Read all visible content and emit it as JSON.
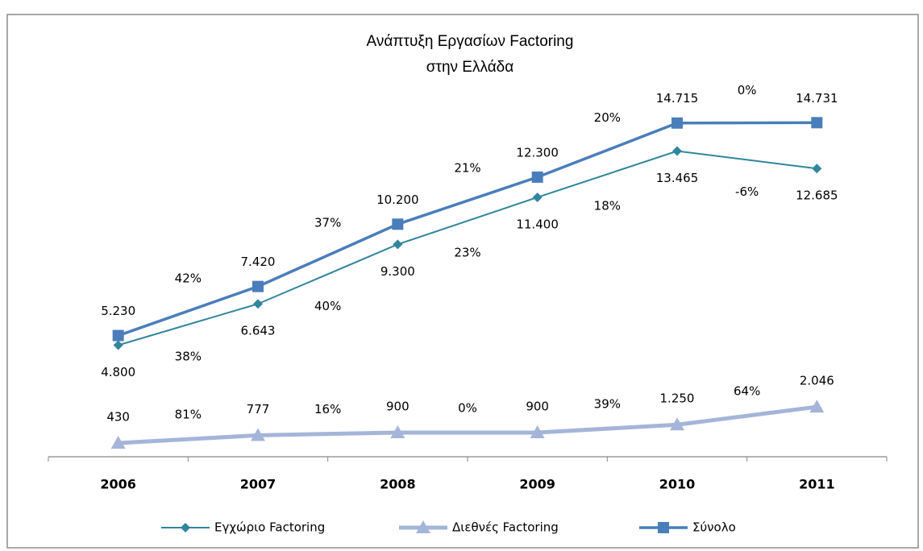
{
  "chart_data": {
    "type": "line",
    "title": [
      "Ανάπτυξη Εργασίων Factoring",
      "στην Ελλάδα"
    ],
    "categories": [
      "2006",
      "2007",
      "2008",
      "2009",
      "2010",
      "2011"
    ],
    "ylim": [
      0,
      16000
    ],
    "legend": "bottom",
    "series": [
      {
        "name": "Εγχώριο Factoring",
        "color": "#31859c",
        "marker": "diamond",
        "values": [
          4800,
          6643,
          9300,
          11400,
          13465,
          12685
        ],
        "value_labels": [
          "4.800",
          "6.643",
          "9.300",
          "11.400",
          "13.465",
          "12.685"
        ],
        "growth_labels": [
          "38%",
          "40%",
          "23%",
          "18%",
          "-6%"
        ]
      },
      {
        "name": "Διεθνές Factoring",
        "color": "#a5b5d9",
        "marker": "triangle",
        "values": [
          430,
          777,
          900,
          900,
          1250,
          2046
        ],
        "value_labels": [
          "430",
          "777",
          "900",
          "900",
          "1.250",
          "2.046"
        ],
        "growth_labels": [
          "81%",
          "16%",
          "0%",
          "39%",
          "64%"
        ]
      },
      {
        "name": "Σύνολο",
        "color": "#4a7ebb",
        "marker": "square",
        "values": [
          5230,
          7420,
          10200,
          12300,
          14715,
          14731
        ],
        "value_labels": [
          "5.230",
          "7.420",
          "10.200",
          "12.300",
          "14.715",
          "14.731"
        ],
        "growth_labels": [
          "42%",
          "37%",
          "21%",
          "20%",
          "0%"
        ]
      }
    ]
  }
}
